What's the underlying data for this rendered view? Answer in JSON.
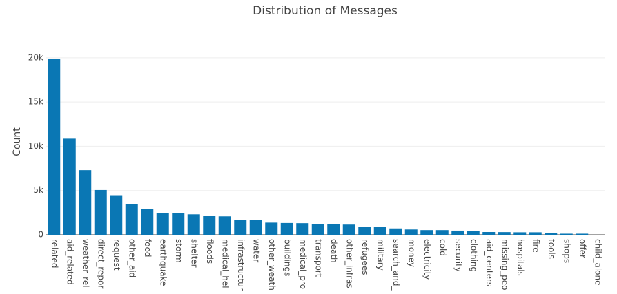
{
  "chart_data": {
    "type": "bar",
    "title": "Distribution of Messages",
    "y_label": "Count",
    "categories": [
      "related",
      "aid_related",
      "weather_rel",
      "direct_repor",
      "request",
      "other_aid",
      "food",
      "earthquake",
      "storm",
      "shelter",
      "floods",
      "medical_hel",
      "infrastructur",
      "water",
      "other_weath",
      "buildings",
      "medical_pro",
      "transport",
      "death",
      "other_infras",
      "refugees",
      "military",
      "search_and_",
      "money",
      "electricity",
      "cold",
      "security",
      "clothing",
      "aid_centers",
      "missing_peo",
      "hospitals",
      "fire",
      "tools",
      "shops",
      "offer",
      "child_alone"
    ],
    "values": [
      19900,
      10860,
      7300,
      5060,
      4470,
      3440,
      2920,
      2450,
      2440,
      2310,
      2150,
      2080,
      1700,
      1670,
      1370,
      1330,
      1310,
      1200,
      1190,
      1150,
      870,
      860,
      720,
      600,
      530,
      530,
      470,
      400,
      310,
      300,
      280,
      280,
      160,
      120,
      120,
      0
    ],
    "color": "#0a77b4",
    "ylim": [
      0,
      21000
    ],
    "yticks": [
      0,
      {
        "value": 5000,
        "label": "5k"
      },
      {
        "value": 10000,
        "label": "10k"
      },
      {
        "value": 15000,
        "label": "15k"
      },
      {
        "value": 20000,
        "label": "20k"
      }
    ],
    "grid": true
  }
}
